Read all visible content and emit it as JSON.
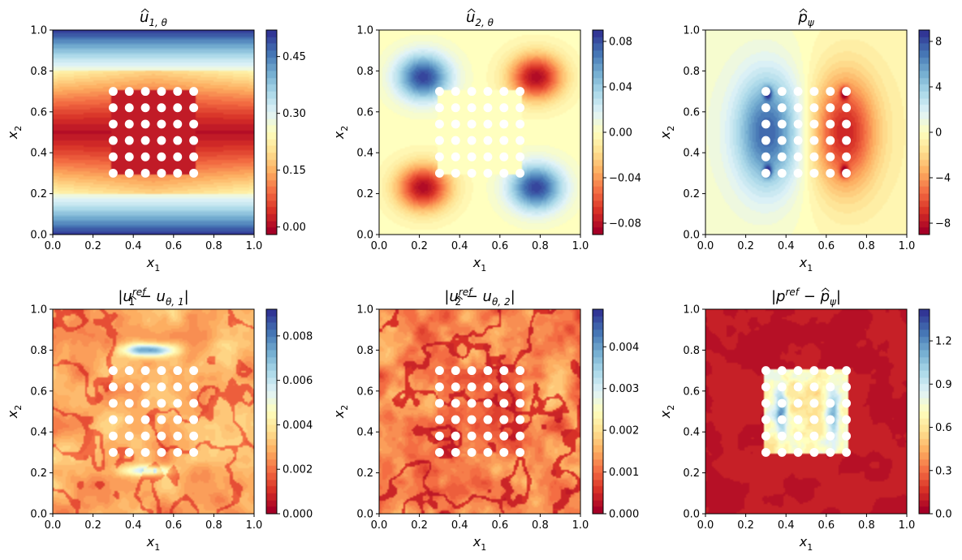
{
  "colormap": [
    "#a50026",
    "#d73027",
    "#f46d43",
    "#fdae61",
    "#fee090",
    "#ffffbf",
    "#e0f3f8",
    "#abd9e9",
    "#74add1",
    "#4575b4",
    "#313695"
  ],
  "chart_data": [
    {
      "type": "heatmap",
      "title": "û₁,θ",
      "title_main": "u",
      "title_sub": "1, θ",
      "field": "u1",
      "xlabel": "x1",
      "ylabel": "x2",
      "xlim": [
        0,
        1
      ],
      "ylim": [
        0,
        1
      ],
      "x_ticks": [
        "0.0",
        "0.2",
        "0.4",
        "0.6",
        "0.8",
        "1.0"
      ],
      "y_ticks": [
        "0.0",
        "0.2",
        "0.4",
        "0.6",
        "0.8",
        "1.0"
      ],
      "vmin": -0.02,
      "vmax": 0.52,
      "colorbar_ticks": [
        {
          "value": 0.45,
          "label": "0.45"
        },
        {
          "value": 0.3,
          "label": "0.30"
        },
        {
          "value": 0.15,
          "label": "0.15"
        },
        {
          "value": 0.0,
          "label": "0.00"
        }
      ]
    },
    {
      "type": "heatmap",
      "title": "û₂,θ",
      "title_main": "u",
      "title_sub": "2, θ",
      "field": "u2",
      "xlabel": "x1",
      "ylabel": "x2",
      "xlim": [
        0,
        1
      ],
      "ylim": [
        0,
        1
      ],
      "x_ticks": [
        "0.0",
        "0.2",
        "0.4",
        "0.6",
        "0.8",
        "1.0"
      ],
      "y_ticks": [
        "0.0",
        "0.2",
        "0.4",
        "0.6",
        "0.8",
        "1.0"
      ],
      "vmin": -0.09,
      "vmax": 0.09,
      "colorbar_ticks": [
        {
          "value": 0.08,
          "label": "0.08"
        },
        {
          "value": 0.04,
          "label": "0.04"
        },
        {
          "value": 0.0,
          "label": "0.00"
        },
        {
          "value": -0.04,
          "label": "−0.04"
        },
        {
          "value": -0.08,
          "label": "−0.08"
        }
      ]
    },
    {
      "type": "heatmap",
      "title": "p̂ψ",
      "title_main": "p",
      "title_sub": "ψ",
      "field": "p",
      "xlabel": "x1",
      "ylabel": "x2",
      "xlim": [
        0,
        1
      ],
      "ylim": [
        0,
        1
      ],
      "x_ticks": [
        "0.0",
        "0.2",
        "0.4",
        "0.6",
        "0.8",
        "1.0"
      ],
      "y_ticks": [
        "0.0",
        "0.2",
        "0.4",
        "0.6",
        "0.8",
        "1.0"
      ],
      "vmin": -9,
      "vmax": 9,
      "colorbar_ticks": [
        {
          "value": 8,
          "label": "8"
        },
        {
          "value": 4,
          "label": "4"
        },
        {
          "value": 0,
          "label": "0"
        },
        {
          "value": -4,
          "label": "−4"
        },
        {
          "value": -8,
          "label": "−8"
        }
      ]
    },
    {
      "type": "heatmap",
      "title": "|u₁^ref − ûθ,1|",
      "field": "e1",
      "xlabel": "x1",
      "ylabel": "x2",
      "xlim": [
        0,
        1
      ],
      "ylim": [
        0,
        1
      ],
      "title_parts": {
        "a": "|u",
        "sub1": "1",
        "sup": "ref",
        "b": " − ",
        "c": "u",
        "sub2": "θ, 1",
        "d": "|"
      },
      "x_ticks": [
        "0.0",
        "0.2",
        "0.4",
        "0.6",
        "0.8",
        "1.0"
      ],
      "y_ticks": [
        "0.0",
        "0.2",
        "0.4",
        "0.6",
        "0.8",
        "1.0"
      ],
      "vmin": 0.0,
      "vmax": 0.0092,
      "colorbar_ticks": [
        {
          "value": 0.008,
          "label": "0.008"
        },
        {
          "value": 0.006,
          "label": "0.006"
        },
        {
          "value": 0.004,
          "label": "0.004"
        },
        {
          "value": 0.002,
          "label": "0.002"
        },
        {
          "value": 0.0,
          "label": "0.000"
        }
      ]
    },
    {
      "type": "heatmap",
      "title": "|u₂^ref − ûθ,2|",
      "field": "e2",
      "xlabel": "x1",
      "ylabel": "x2",
      "xlim": [
        0,
        1
      ],
      "ylim": [
        0,
        1
      ],
      "title_parts": {
        "a": "|u",
        "sub1": "2",
        "sup": "ref",
        "b": " − ",
        "c": "u",
        "sub2": "θ, 2",
        "d": "|"
      },
      "x_ticks": [
        "0.0",
        "0.2",
        "0.4",
        "0.6",
        "0.8",
        "1.0"
      ],
      "y_ticks": [
        "0.0",
        "0.2",
        "0.4",
        "0.6",
        "0.8",
        "1.0"
      ],
      "vmin": 0.0,
      "vmax": 0.0049,
      "colorbar_ticks": [
        {
          "value": 0.004,
          "label": "0.004"
        },
        {
          "value": 0.003,
          "label": "0.003"
        },
        {
          "value": 0.002,
          "label": "0.002"
        },
        {
          "value": 0.001,
          "label": "0.001"
        },
        {
          "value": 0.0,
          "label": "0.000"
        }
      ]
    },
    {
      "type": "heatmap",
      "title": "|p^ref − p̂ψ|",
      "field": "e3",
      "xlabel": "x1",
      "ylabel": "x2",
      "xlim": [
        0,
        1
      ],
      "ylim": [
        0,
        1
      ],
      "title_parts": {
        "a": "|p",
        "sub1": "",
        "sup": "ref",
        "b": " − ",
        "c": "p",
        "sub2": "ψ",
        "d": "|"
      },
      "x_ticks": [
        "0.0",
        "0.2",
        "0.4",
        "0.6",
        "0.8",
        "1.0"
      ],
      "y_ticks": [
        "0.0",
        "0.2",
        "0.4",
        "0.6",
        "0.8",
        "1.0"
      ],
      "vmin": 0.0,
      "vmax": 1.42,
      "colorbar_ticks": [
        {
          "value": 1.2,
          "label": "1.2"
        },
        {
          "value": 0.9,
          "label": "0.9"
        },
        {
          "value": 0.6,
          "label": "0.6"
        },
        {
          "value": 0.3,
          "label": "0.3"
        },
        {
          "value": 0.0,
          "label": "0.0"
        }
      ]
    }
  ],
  "obstacle_grid": {
    "rows": 6,
    "cols": 6,
    "x_start": 0.3,
    "x_end": 0.7,
    "y_start": 0.3,
    "y_end": 0.7,
    "radius": 0.022
  }
}
